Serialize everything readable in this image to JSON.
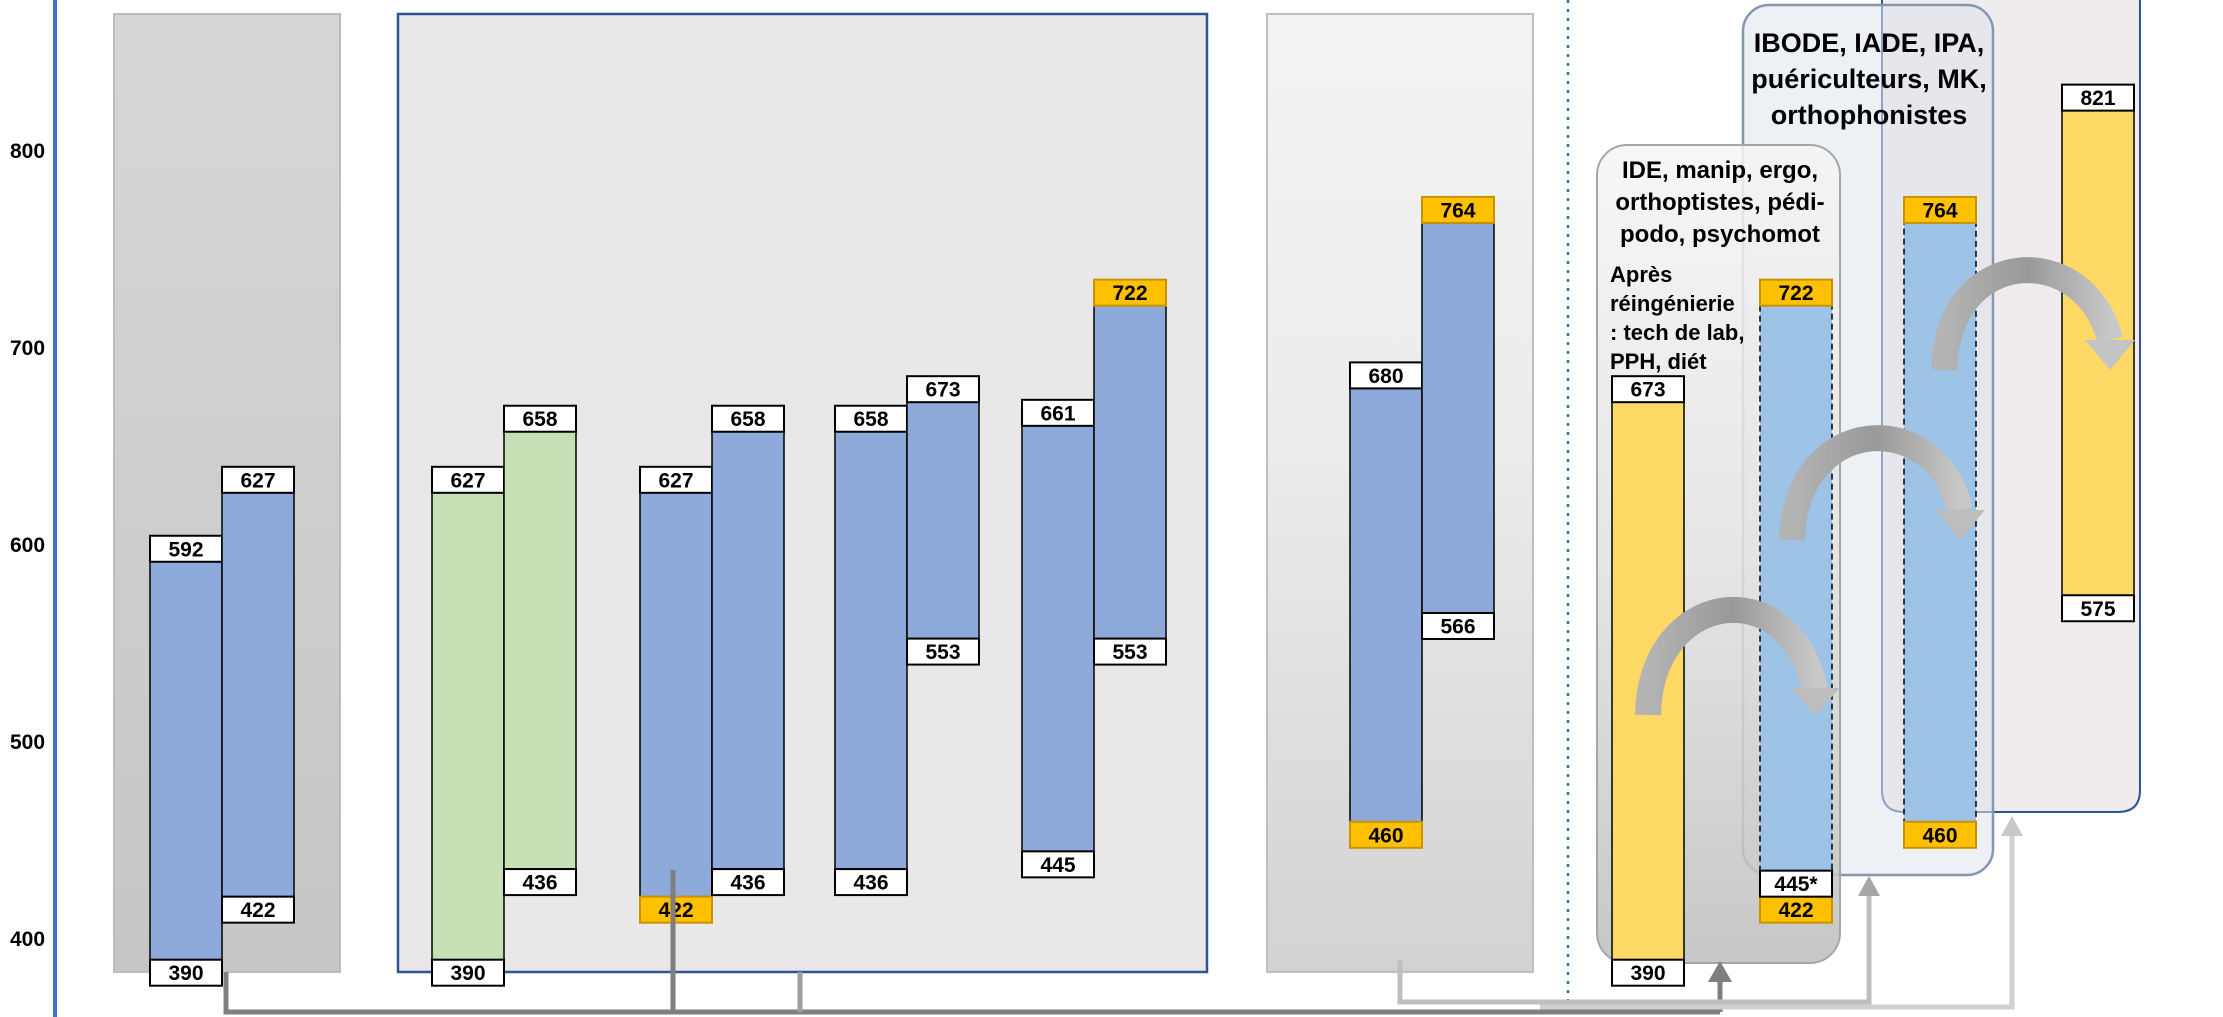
{
  "y_axis": {
    "ticks": [
      "400",
      "500",
      "600",
      "700",
      "800"
    ]
  },
  "groups": {
    "ide_title": [
      "IDE, manip, ergo,",
      "orthoptistes, pédi-",
      "podo, psychomot"
    ],
    "ide_note": [
      "Après",
      "réingénierie",
      ": tech de lab,",
      "PPH, diét"
    ],
    "ibode_title": [
      "IBODE, IADE, IPA,",
      "puériculteurs, MK,",
      "orthophonistes"
    ]
  },
  "chart_data": {
    "type": "range-bar",
    "y_ticks": [
      400,
      500,
      600,
      700,
      800
    ],
    "bars": [
      {
        "id": "p1a",
        "fill": "blue",
        "low": 390,
        "high": 592,
        "low_label": "390",
        "high_label": "592"
      },
      {
        "id": "p1b",
        "fill": "blue",
        "low": 422,
        "high": 627,
        "low_label": "422",
        "high_label": "627"
      },
      {
        "id": "p2a",
        "fill": "green",
        "low": 390,
        "high": 627,
        "low_label": "390",
        "high_label": "627"
      },
      {
        "id": "p2b",
        "fill": "green",
        "low": 436,
        "high": 658,
        "low_label": "436",
        "high_label": "658"
      },
      {
        "id": "p3a",
        "fill": "blue",
        "low": 422,
        "high": 627,
        "low_label": "422",
        "high_label": "627",
        "low_highlight": true
      },
      {
        "id": "p3b",
        "fill": "blue",
        "low": 436,
        "high": 658,
        "low_label": "436",
        "high_label": "658"
      },
      {
        "id": "p4a",
        "fill": "blue",
        "low": 436,
        "high": 658,
        "low_label": "436",
        "high_label": "658"
      },
      {
        "id": "p4b",
        "fill": "blue",
        "low": 553,
        "high": 673,
        "low_label": "553",
        "high_label": "673"
      },
      {
        "id": "p5a",
        "fill": "blue",
        "low": 445,
        "high": 661,
        "low_label": "445",
        "high_label": "661"
      },
      {
        "id": "p5b",
        "fill": "blue",
        "low": 553,
        "high": 722,
        "low_label": "553",
        "high_label": "722",
        "high_highlight": true
      },
      {
        "id": "p6a",
        "fill": "blue",
        "low": 460,
        "high": 680,
        "low_label": "460",
        "high_label": "680",
        "low_highlight": true
      },
      {
        "id": "p6b",
        "fill": "blue",
        "low": 566,
        "high": 764,
        "low_label": "566",
        "high_label": "764",
        "high_highlight": true
      },
      {
        "id": "p7a",
        "fill": "yellow",
        "low": 390,
        "high": 673,
        "low_label": "390",
        "high_label": "673"
      },
      {
        "id": "p7b",
        "fill": "lightblue",
        "dashed": true,
        "low": 422,
        "high": 722,
        "low_label": "422",
        "high_label": "722",
        "low_highlight": true,
        "high_highlight": true,
        "extra_label": "445*"
      },
      {
        "id": "p8",
        "fill": "lightblue",
        "dashed": true,
        "low": 460,
        "high": 764,
        "low_label": "460",
        "high_label": "764",
        "low_highlight": true,
        "high_highlight": true
      },
      {
        "id": "p9",
        "fill": "yellow",
        "low": 575,
        "high": 821,
        "low_label": "575",
        "high_label": "821"
      }
    ]
  }
}
